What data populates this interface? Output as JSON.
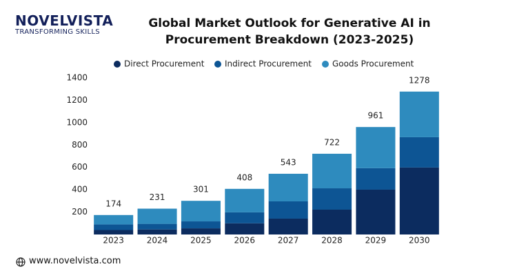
{
  "logo": {
    "name": "NOVELVISTA",
    "tagline": "TRANSFORMING SKILLS"
  },
  "footer": {
    "website": "www.novelvista.com"
  },
  "chart_data": {
    "type": "stacked-bar",
    "title": "Global Market Outlook for Generative AI in Procurement Breakdown (2023-2025)",
    "categories": [
      "2023",
      "2024",
      "2025",
      "2026",
      "2027",
      "2028",
      "2029",
      "2030"
    ],
    "series": [
      {
        "name": "Direct Procurement",
        "color": "#0c2c5f",
        "values": [
          40,
          45,
          55,
          100,
          142,
          222,
          401,
          599
        ]
      },
      {
        "name": "Indirect Procurement",
        "color": "#0d5594",
        "values": [
          50,
          50,
          62,
          98,
          154,
          191,
          192,
          271
        ]
      },
      {
        "name": "Goods Procurement",
        "color": "#2e8bbe",
        "values": [
          84,
          136,
          184,
          210,
          247,
          309,
          368,
          408
        ]
      }
    ],
    "totals": [
      174,
      231,
      301,
      408,
      543,
      722,
      961,
      1278
    ],
    "ylim": [
      0,
      1400
    ],
    "yticks": [
      200,
      400,
      600,
      800,
      1000,
      1200,
      1400
    ],
    "grid": false
  }
}
